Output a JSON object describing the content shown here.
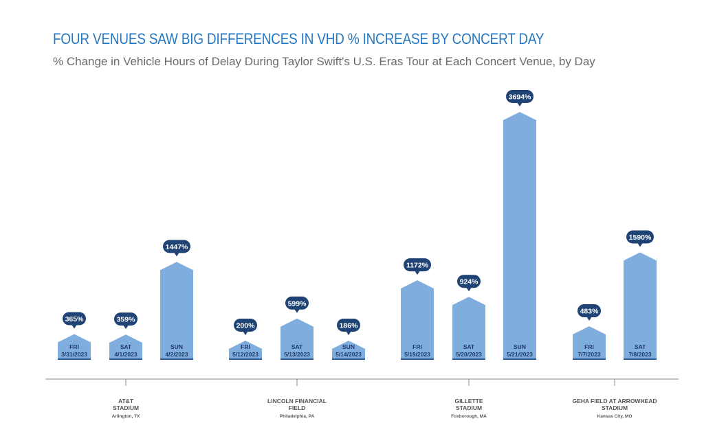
{
  "chart_data": {
    "type": "bar",
    "title": "FOUR VENUES SAW BIG DIFFERENCES IN VHD % INCREASE BY CONCERT DAY",
    "subtitle": "% Change in Vehicle Hours of Delay During Taylor Swift's U.S. Eras Tour at Each Concert Venue, by Day",
    "unit": "%",
    "ylim": [
      0,
      3694
    ],
    "grid": false,
    "colors": {
      "bar": "#7fadde",
      "bar_base": "#2b5a96",
      "label_bubble": "#1f4374",
      "axis": "#8a8a8a"
    },
    "groups": [
      {
        "venue": "AT&T\nSTADIUM",
        "location": "Arlington, TX",
        "bars": [
          {
            "day": "FRI",
            "date": "3/31/2023",
            "value": 365,
            "label": "365%"
          },
          {
            "day": "SAT",
            "date": "4/1/2023",
            "value": 359,
            "label": "359%"
          },
          {
            "day": "SUN",
            "date": "4/2/2023",
            "value": 1447,
            "label": "1447%"
          }
        ]
      },
      {
        "venue": "LINCOLN FINANCIAL\nFIELD",
        "location": "Philadelphia, PA",
        "bars": [
          {
            "day": "FRI",
            "date": "5/12/2023",
            "value": 200,
            "label": "200%"
          },
          {
            "day": "SAT",
            "date": "5/13/2023",
            "value": 599,
            "label": "599%"
          },
          {
            "day": "SUN",
            "date": "5/14/2023",
            "value": 186,
            "label": "186%"
          }
        ]
      },
      {
        "venue": "GILLETTE\nSTADIUM",
        "location": "Foxborough, MA",
        "bars": [
          {
            "day": "FRI",
            "date": "5/19/2023",
            "value": 1172,
            "label": "1172%"
          },
          {
            "day": "SAT",
            "date": "5/20/2023",
            "value": 924,
            "label": "924%"
          },
          {
            "day": "SUN",
            "date": "5/21/2023",
            "value": 3694,
            "label": "3694%"
          }
        ]
      },
      {
        "venue": "GEHA FIELD AT ARROWHEAD\nSTADIUM",
        "location": "Kansas City, MO",
        "bars": [
          {
            "day": "FRI",
            "date": "7/7/2023",
            "value": 483,
            "label": "483%"
          },
          {
            "day": "SAT",
            "date": "7/8/2023",
            "value": 1590,
            "label": "1590%"
          }
        ]
      }
    ]
  }
}
